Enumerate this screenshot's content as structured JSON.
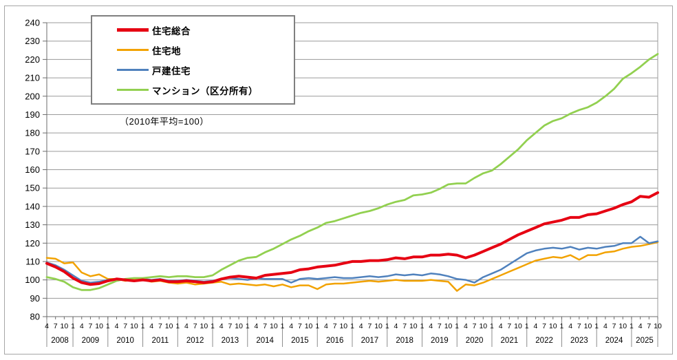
{
  "chart_data": {
    "type": "line",
    "title": "",
    "note": "（2010年平均=100）",
    "legend_position": "top-left",
    "grid": true,
    "ylim": [
      80,
      240
    ],
    "y_axis": {
      "ticks": [
        80,
        90,
        100,
        110,
        120,
        130,
        140,
        150,
        160,
        170,
        180,
        190,
        200,
        210,
        220,
        230,
        240
      ]
    },
    "x_axis": {
      "years": [
        "2008",
        "2009",
        "2010",
        "2011",
        "2012",
        "2013",
        "2014",
        "2015",
        "2016",
        "2017",
        "2018",
        "2019",
        "2020",
        "2021",
        "2022",
        "2023",
        "2024",
        "2025"
      ],
      "quarter_months": [
        "1",
        "4",
        "7",
        "10"
      ],
      "first_year_months": [
        "4",
        "7",
        "10"
      ]
    },
    "x": [
      "2008-4",
      "2008-7",
      "2008-10",
      "2009-1",
      "2009-4",
      "2009-7",
      "2009-10",
      "2010-1",
      "2010-4",
      "2010-7",
      "2010-10",
      "2011-1",
      "2011-4",
      "2011-7",
      "2011-10",
      "2012-1",
      "2012-4",
      "2012-7",
      "2012-10",
      "2013-1",
      "2013-4",
      "2013-7",
      "2013-10",
      "2014-1",
      "2014-4",
      "2014-7",
      "2014-10",
      "2015-1",
      "2015-4",
      "2015-7",
      "2015-10",
      "2016-1",
      "2016-4",
      "2016-7",
      "2016-10",
      "2017-1",
      "2017-4",
      "2017-7",
      "2017-10",
      "2018-1",
      "2018-4",
      "2018-7",
      "2018-10",
      "2019-1",
      "2019-4",
      "2019-7",
      "2019-10",
      "2020-1",
      "2020-4",
      "2020-7",
      "2020-10",
      "2021-1",
      "2021-4",
      "2021-7",
      "2021-10",
      "2022-1",
      "2022-4",
      "2022-7",
      "2022-10",
      "2023-1",
      "2023-4",
      "2023-7",
      "2023-10",
      "2024-1",
      "2024-4",
      "2024-7",
      "2024-10",
      "2025-1",
      "2025-4",
      "2025-7",
      "2025-10"
    ],
    "series": [
      {
        "id": "housing-total",
        "name": "住宅総合",
        "color": "#e60012",
        "values": [
          109,
          107,
          104.5,
          101,
          98.5,
          97.5,
          98,
          99.5,
          100.5,
          100,
          99.5,
          100,
          99.5,
          100,
          99,
          99,
          99.5,
          99,
          98.5,
          99,
          100.5,
          101.5,
          102,
          101.5,
          101,
          102.5,
          103,
          103.5,
          104,
          105.5,
          106,
          107,
          107.5,
          108,
          109,
          110,
          110,
          110.5,
          110.5,
          111,
          112,
          111.5,
          112.5,
          112.5,
          113.5,
          113.5,
          114,
          113.5,
          112,
          113.5,
          115.5,
          117.5,
          119.5,
          122,
          124.5,
          126.5,
          128.5,
          130.5,
          131.5,
          132.5,
          134,
          134,
          135.5,
          136,
          137.5,
          139,
          141,
          142.5,
          145.5,
          145,
          147.5
        ]
      },
      {
        "id": "residential-land",
        "name": "住宅地",
        "color": "#f2a200",
        "values": [
          112,
          111.5,
          109,
          109.5,
          104,
          102,
          103,
          100.5,
          100.5,
          99.5,
          100,
          100,
          99,
          99.5,
          98.5,
          98,
          98.5,
          97.5,
          98,
          98.5,
          99,
          97.5,
          98,
          97.5,
          97,
          97.5,
          96.5,
          97.5,
          96,
          97,
          97,
          95,
          97.5,
          98,
          98,
          98.5,
          99,
          99.5,
          99,
          99.5,
          100,
          99.5,
          99.5,
          99.5,
          100,
          99.5,
          99,
          94,
          97.5,
          97,
          98.5,
          100.5,
          102.5,
          104.5,
          106.5,
          108.5,
          110.5,
          111.5,
          112.5,
          112,
          113.5,
          111,
          113.5,
          113.5,
          115,
          115.5,
          117,
          118,
          118.5,
          119.5,
          120.5
        ]
      },
      {
        "id": "detached-house",
        "name": "戸建住宅",
        "color": "#4f81bd",
        "values": [
          109.5,
          108,
          105.5,
          102.5,
          99.5,
          98.5,
          99,
          100,
          100.5,
          100,
          99.5,
          100.5,
          100,
          100.5,
          99.5,
          99.5,
          100,
          99.5,
          99,
          99.5,
          100.5,
          101,
          100.5,
          100,
          101,
          100.5,
          100.5,
          100.5,
          98.5,
          100.5,
          101,
          100.5,
          101,
          101.5,
          101,
          101,
          101.5,
          102,
          101.5,
          102,
          103,
          102.5,
          103,
          102.5,
          103.5,
          103,
          102,
          100.5,
          100,
          98.5,
          101.5,
          103.5,
          105.5,
          108.5,
          111.5,
          114.5,
          116,
          117,
          117.5,
          117,
          118,
          116.5,
          117.5,
          117,
          118,
          118.5,
          120,
          120,
          123.5,
          120,
          121
        ]
      },
      {
        "id": "condominium",
        "name": "マンション（区分所有）",
        "color": "#92d050",
        "values": [
          101.5,
          100.5,
          99,
          96,
          94.5,
          94.5,
          95.5,
          97.5,
          99.5,
          100.5,
          101,
          101,
          101.5,
          102,
          101.5,
          102,
          102,
          101.5,
          101.5,
          102.5,
          105.5,
          108,
          110.5,
          112,
          112.5,
          115,
          117,
          119.5,
          122,
          124,
          126.5,
          128.5,
          131,
          132,
          133.5,
          135,
          136.5,
          137.5,
          139,
          141,
          142.5,
          143.5,
          146,
          146.5,
          147.5,
          149.5,
          152,
          152.5,
          152.5,
          155.5,
          158,
          159.5,
          163,
          167,
          171,
          176,
          180,
          184,
          186.5,
          188,
          190.5,
          192.5,
          194,
          196.5,
          200,
          204,
          209.5,
          212.5,
          216,
          220,
          223
        ]
      }
    ]
  }
}
